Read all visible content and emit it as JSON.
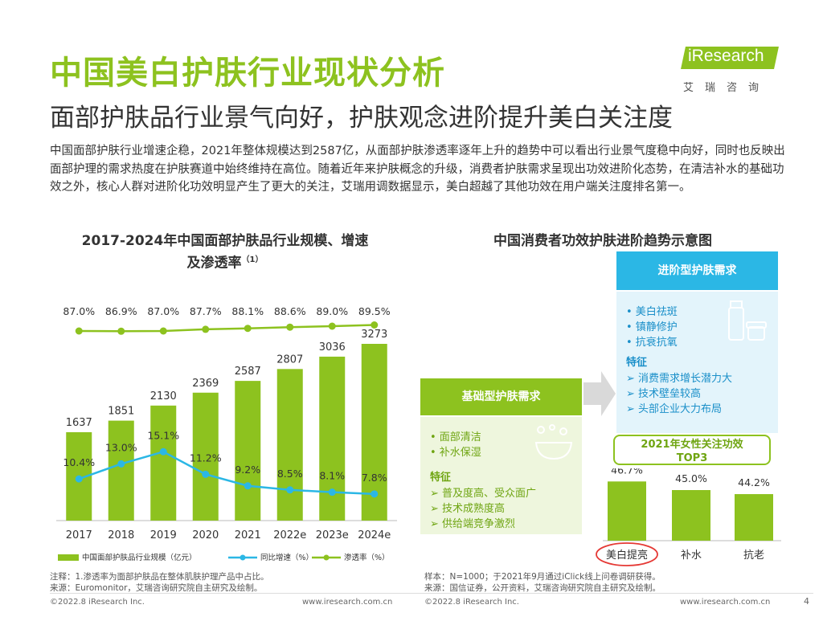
{
  "header": {
    "title": "中国美白护肤行业现状分析",
    "subtitle": "面部护肤品行业景气向好，护肤观念进阶提升美白关注度",
    "logo_brand": "iResearch",
    "logo_cn": "艾瑞咨询",
    "intro": "中国面部护肤行业增速企稳，2021年整体规模达到2587亿，从面部护肤渗透率逐年上升的趋势中可以看出行业景气度稳中向好，同时也反映出面部护理的需求热度在护肤赛道中始终维持在高位。随着近年来护肤概念的升级，消费者护肤需求呈现出功效进阶化态势，在清洁补水的基础功效之外，核心人群对进阶化功效明显产生了更大的关注，艾瑞用调数据显示，美白超越了其他功效在用户端关注度排名第一。"
  },
  "left_chart": {
    "title_line1": "2017-2024年中国面部护肤品行业规模、增速",
    "title_line2": "及渗透率",
    "title_sup": "（1）",
    "note_line1": "注释：1.渗透率为面部护肤品在整体肌肤护理产品中占比。",
    "note_line2": "来源：Euromonitor，艾瑞咨询研究院自主研究及绘制。"
  },
  "right_diagram": {
    "title": "中国消费者功效护肤进阶趋势示意图",
    "advanced": {
      "head": "进阶型护肤需求",
      "items": [
        "•  美白祛斑",
        "•  镇静修护",
        "•  抗衰抗氧"
      ],
      "feature_label": "特征",
      "features": [
        "➢  消费需求增长潜力大",
        "➢  技术壁垒较高",
        "➢  头部企业大力布局"
      ]
    },
    "basic": {
      "head": "基础型护肤需求",
      "items": [
        "•  面部清洁",
        "•  补水保湿"
      ],
      "feature_label": "特征",
      "features": [
        "➢  普及度高、受众面广",
        "➢  技术成熟度高",
        "➢  供给端竞争激烈"
      ]
    },
    "top3_line1": "2021年女性关注功效",
    "top3_line2": "TOP3",
    "note_line1": "样本：N=1000；于2021年9月通过iClick线上问卷调研获得。",
    "note_line2": "来源：国信证券，公开资料，艾瑞咨询研究院自主研究及绘制。"
  },
  "footer": {
    "copyright_left": "©2022.8 iResearch Inc.",
    "url_left": "www.iresearch.com.cn",
    "copyright_right": "©2022.8 iResearch Inc.",
    "url_right": "www.iresearch.com.cn",
    "page": "4"
  },
  "colors": {
    "accent_green": "#8dc21f",
    "bar_green": "#8dc21f",
    "growth_line": "#2bb7e5",
    "penetration_line": "#8dc21f",
    "advanced_blue": "#2bb7e5",
    "highlight_red": "#e53935"
  },
  "chart_data": [
    {
      "type": "bar",
      "categories": [
        "2017",
        "2018",
        "2019",
        "2020",
        "2021",
        "2022e",
        "2023e",
        "2024e"
      ],
      "series": [
        {
          "name": "中国面部护肤品行业规模（亿元）",
          "type": "bar",
          "values": [
            1637,
            1851,
            2130,
            2369,
            2587,
            2807,
            3036,
            3273
          ],
          "labels": [
            "1637",
            "1851",
            "2130",
            "2369",
            "2587",
            "2807",
            "3036",
            "3273"
          ]
        },
        {
          "name": "同比增速（%）",
          "type": "line",
          "values": [
            10.4,
            13.0,
            15.1,
            11.2,
            9.2,
            8.5,
            8.1,
            7.8
          ],
          "labels": [
            "10.4%",
            "13.0%",
            "15.1%",
            "11.2%",
            "9.2%",
            "8.5%",
            "8.1%",
            "7.8%"
          ]
        },
        {
          "name": "渗透率（%）",
          "type": "line",
          "values": [
            87.0,
            86.9,
            87.0,
            87.7,
            88.1,
            88.6,
            89.0,
            89.5
          ],
          "labels": [
            "87.0%",
            "86.9%",
            "87.0%",
            "87.7%",
            "88.1%",
            "88.6%",
            "89.0%",
            "89.5%"
          ]
        }
      ]
    },
    {
      "type": "bar",
      "categories": [
        "美白提亮",
        "补水",
        "抗老"
      ],
      "values": [
        46.7,
        45.0,
        44.2
      ],
      "labels": [
        "46.7%",
        "45.0%",
        "44.2%"
      ],
      "highlight": "美白提亮"
    }
  ]
}
